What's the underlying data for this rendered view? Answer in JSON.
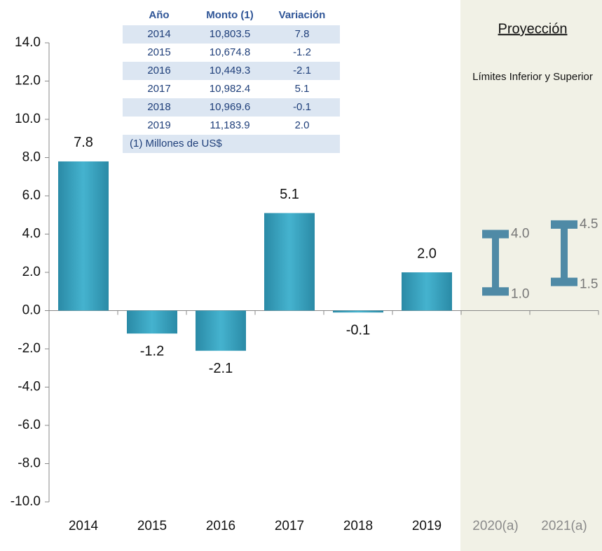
{
  "chart_data": {
    "type": "bar",
    "categories": [
      "2014",
      "2015",
      "2016",
      "2017",
      "2018",
      "2019",
      "2020(a)",
      "2021(a)"
    ],
    "values": [
      7.8,
      -1.2,
      -2.1,
      5.1,
      -0.1,
      2.0,
      null,
      null
    ],
    "value_labels": [
      "7.8",
      "-1.2",
      "-2.1",
      "5.1",
      "-0.1",
      "2.0",
      null,
      null
    ],
    "color": "#2f9ab6",
    "projection": {
      "title": "Proyección",
      "subtitle": "Límites Inferior y Superior",
      "lower": [
        null,
        null,
        null,
        null,
        null,
        null,
        1.0,
        1.5
      ],
      "lower_labels": [
        null,
        null,
        null,
        null,
        null,
        null,
        "1.0",
        "1.5"
      ],
      "upper": [
        null,
        null,
        null,
        null,
        null,
        null,
        4.0,
        4.5
      ],
      "upper_labels": [
        null,
        null,
        null,
        null,
        null,
        null,
        "4.0",
        "4.5"
      ],
      "color": "#4f8aa6"
    },
    "ylim": [
      -10,
      14
    ],
    "yticks": [
      {
        "value": -10,
        "label": "-10.0"
      },
      {
        "value": -8,
        "label": "-8.0"
      },
      {
        "value": -6,
        "label": "-6.0"
      },
      {
        "value": -4,
        "label": "-4.0"
      },
      {
        "value": -2,
        "label": "-2.0"
      },
      {
        "value": 0,
        "label": "0.0"
      },
      {
        "value": 2,
        "label": "2.0"
      },
      {
        "value": 4,
        "label": "4.0"
      },
      {
        "value": 6,
        "label": "6.0"
      },
      {
        "value": 8,
        "label": "8.0"
      },
      {
        "value": 10,
        "label": "10.0"
      },
      {
        "value": 12,
        "label": "12.0"
      },
      {
        "value": 14,
        "label": "14.0"
      }
    ],
    "grid": false,
    "table": {
      "columns": [
        "Año",
        "Monto (1)",
        "Variación"
      ],
      "rows": [
        [
          "2014",
          "10,803.5",
          "7.8"
        ],
        [
          "2015",
          "10,674.8",
          "-1.2"
        ],
        [
          "2016",
          "10,449.3",
          "-2.1"
        ],
        [
          "2017",
          "10,982.4",
          "5.1"
        ],
        [
          "2018",
          "10,969.6",
          "-0.1"
        ],
        [
          "2019",
          "11,183.9",
          "2.0"
        ]
      ],
      "note": "(1) Millones de US$"
    }
  }
}
